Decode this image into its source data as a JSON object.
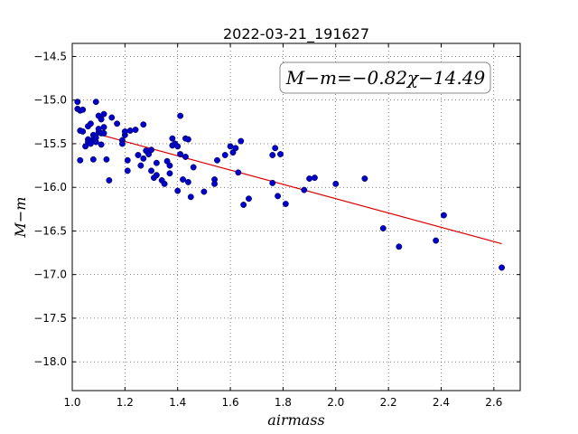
{
  "chart_data": {
    "type": "scatter",
    "title": "2022-03-21_191627",
    "xlabel": "airmass",
    "ylabel": "M−m",
    "xlim": [
      1.0,
      2.7
    ],
    "ylim": [
      -18.33,
      -14.35
    ],
    "y_inverted": true,
    "grid": true,
    "xticks": [
      1.0,
      1.2,
      1.4,
      1.6,
      1.8,
      2.0,
      2.2,
      2.4,
      2.6
    ],
    "xtick_labels": [
      "1.0",
      "1.2",
      "1.4",
      "1.6",
      "1.8",
      "2.0",
      "2.2",
      "2.4",
      "2.6"
    ],
    "yticks": [
      -14.5,
      -15.0,
      -15.5,
      -16.0,
      -16.5,
      -17.0,
      -17.5,
      -18.0
    ],
    "ytick_labels": [
      "−14.5",
      "−15.0",
      "−15.5",
      "−16.0",
      "−16.5",
      "−17.0",
      "−17.5",
      "−18.0"
    ],
    "annotation": "M−m=−0.82χ−14.49",
    "annotation_placement": "top-right",
    "fit_line": {
      "slope": -0.82,
      "intercept": -14.49,
      "x_range": [
        1.1,
        2.63
      ],
      "color": "#dd0000"
    },
    "point_color": "#0000cc",
    "points": [
      [
        1.02,
        -15.02
      ],
      [
        1.02,
        -15.1
      ],
      [
        1.03,
        -15.12
      ],
      [
        1.04,
        -15.11
      ],
      [
        1.03,
        -15.35
      ],
      [
        1.04,
        -15.36
      ],
      [
        1.03,
        -15.69
      ],
      [
        1.05,
        -15.53
      ],
      [
        1.06,
        -15.45
      ],
      [
        1.06,
        -15.48
      ],
      [
        1.06,
        -15.3
      ],
      [
        1.07,
        -15.27
      ],
      [
        1.07,
        -15.5
      ],
      [
        1.08,
        -15.45
      ],
      [
        1.08,
        -15.4
      ],
      [
        1.08,
        -15.68
      ],
      [
        1.09,
        -15.02
      ],
      [
        1.09,
        -15.48
      ],
      [
        1.09,
        -15.43
      ],
      [
        1.1,
        -15.37
      ],
      [
        1.1,
        -15.18
      ],
      [
        1.1,
        -15.33
      ],
      [
        1.11,
        -15.22
      ],
      [
        1.11,
        -15.38
      ],
      [
        1.11,
        -15.51
      ],
      [
        1.12,
        -15.31
      ],
      [
        1.12,
        -15.16
      ],
      [
        1.12,
        -15.38
      ],
      [
        1.13,
        -15.68
      ],
      [
        1.14,
        -15.92
      ],
      [
        1.15,
        -15.2
      ],
      [
        1.17,
        -15.27
      ],
      [
        1.19,
        -15.46
      ],
      [
        1.19,
        -15.5
      ],
      [
        1.2,
        -15.4
      ],
      [
        1.2,
        -15.36
      ],
      [
        1.21,
        -15.69
      ],
      [
        1.21,
        -15.81
      ],
      [
        1.22,
        -15.35
      ],
      [
        1.24,
        -15.34
      ],
      [
        1.25,
        -15.63
      ],
      [
        1.26,
        -15.75
      ],
      [
        1.27,
        -15.28
      ],
      [
        1.27,
        -15.67
      ],
      [
        1.28,
        -15.58
      ],
      [
        1.29,
        -15.62
      ],
      [
        1.3,
        -15.57
      ],
      [
        1.3,
        -15.81
      ],
      [
        1.31,
        -15.89
      ],
      [
        1.32,
        -15.86
      ],
      [
        1.32,
        -15.72
      ],
      [
        1.34,
        -15.92
      ],
      [
        1.35,
        -15.96
      ],
      [
        1.36,
        -15.7
      ],
      [
        1.37,
        -15.75
      ],
      [
        1.37,
        -15.84
      ],
      [
        1.38,
        -15.44
      ],
      [
        1.38,
        -15.52
      ],
      [
        1.39,
        -15.5
      ],
      [
        1.4,
        -15.53
      ],
      [
        1.4,
        -16.04
      ],
      [
        1.41,
        -15.62
      ],
      [
        1.41,
        -15.18
      ],
      [
        1.42,
        -15.91
      ],
      [
        1.43,
        -15.44
      ],
      [
        1.43,
        -15.65
      ],
      [
        1.44,
        -15.45
      ],
      [
        1.44,
        -15.94
      ],
      [
        1.45,
        -16.11
      ],
      [
        1.46,
        -15.77
      ],
      [
        1.5,
        -16.05
      ],
      [
        1.54,
        -15.91
      ],
      [
        1.54,
        -15.96
      ],
      [
        1.55,
        -15.69
      ],
      [
        1.58,
        -15.63
      ],
      [
        1.6,
        -15.53
      ],
      [
        1.61,
        -15.6
      ],
      [
        1.62,
        -15.55
      ],
      [
        1.63,
        -15.83
      ],
      [
        1.64,
        -15.47
      ],
      [
        1.65,
        -16.2
      ],
      [
        1.67,
        -16.13
      ],
      [
        1.76,
        -15.63
      ],
      [
        1.76,
        -15.95
      ],
      [
        1.77,
        -15.55
      ],
      [
        1.79,
        -15.62
      ],
      [
        1.78,
        -16.1
      ],
      [
        1.81,
        -16.19
      ],
      [
        1.88,
        -16.03
      ],
      [
        1.9,
        -15.9
      ],
      [
        1.92,
        -15.89
      ],
      [
        2.0,
        -15.96
      ],
      [
        2.11,
        -15.9
      ],
      [
        2.18,
        -16.47
      ],
      [
        2.24,
        -16.68
      ],
      [
        2.38,
        -16.61
      ],
      [
        2.41,
        -16.32
      ],
      [
        2.63,
        -16.92
      ]
    ]
  }
}
